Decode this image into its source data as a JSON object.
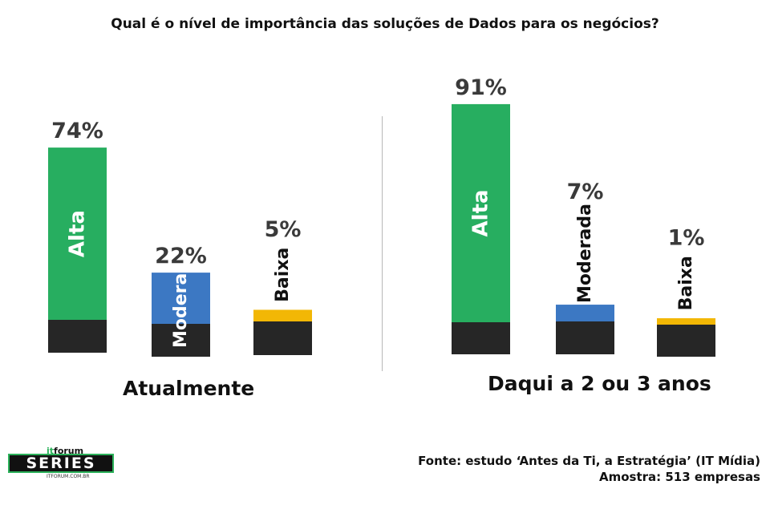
{
  "title": "Qual é o nível de importância das soluções de Dados para os negócios?",
  "source": "Fonte: estudo ‘Antes da Ti, a Estratégia’ (IT Mídia)",
  "sample": "Amostra: 513 empresas",
  "logo": {
    "brand_it": "it",
    "brand_forum": "forum",
    "series": "SERIES",
    "url": "ITFORUM.COM.BR"
  },
  "colors": {
    "alta": "#27ae60",
    "moderada": "#3c78c3",
    "baixa": "#f2b705",
    "base": "#262626"
  },
  "chart_data": [
    {
      "type": "bar",
      "group_label": "Atualmente",
      "categories": [
        "Alta",
        "Moderada",
        "Baixa"
      ],
      "values": [
        74,
        22,
        5
      ],
      "value_labels": [
        "74%",
        "22%",
        "5%"
      ],
      "colors": [
        "#27ae60",
        "#3c78c3",
        "#f2b705"
      ],
      "label_inside": [
        true,
        true,
        false
      ]
    },
    {
      "type": "bar",
      "group_label": "Daqui a 2 ou 3 anos",
      "categories": [
        "Alta",
        "Moderada",
        "Baixa"
      ],
      "values": [
        91,
        7,
        1
      ],
      "value_labels": [
        "91%",
        "7%",
        "1%"
      ],
      "colors": [
        "#27ae60",
        "#3c78c3",
        "#f2b705"
      ],
      "label_inside": [
        true,
        false,
        false
      ]
    }
  ]
}
